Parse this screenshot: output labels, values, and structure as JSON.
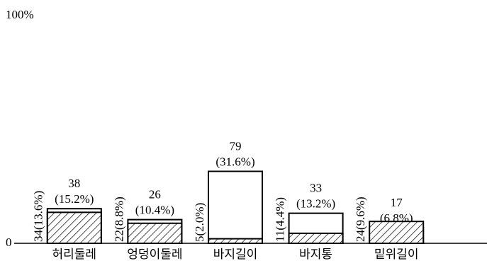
{
  "chart_data": {
    "type": "bar",
    "categories": [
      "허리둘레",
      "엉덩이둘레",
      "바지길이",
      "바지통",
      "밑위길이"
    ],
    "series": [
      {
        "color": "#ffffff",
        "values": [
          15.2,
          10.4,
          31.6,
          13.2,
          6.8
        ],
        "value_labels": [
          [
            "38",
            "(15.2%)"
          ],
          [
            "26",
            "(10.4%)"
          ],
          [
            "79",
            "(31.6%)"
          ],
          [
            "33",
            "(13.2%)"
          ],
          [
            "17",
            "(6.8%)"
          ]
        ]
      },
      {
        "color": "#ffffff",
        "hatch": true,
        "values": [
          13.6,
          8.8,
          2.0,
          4.4,
          9.6
        ],
        "value_labels": [
          "34(13.6%)",
          "22(8.8%)",
          "5(2.0%)",
          "11(4.4%)",
          "24(9.6%)"
        ]
      }
    ],
    "ylim": [
      0,
      100
    ],
    "yticks": [
      0,
      {
        "value": 100,
        "label": "100%"
      }
    ],
    "grid": false
  }
}
